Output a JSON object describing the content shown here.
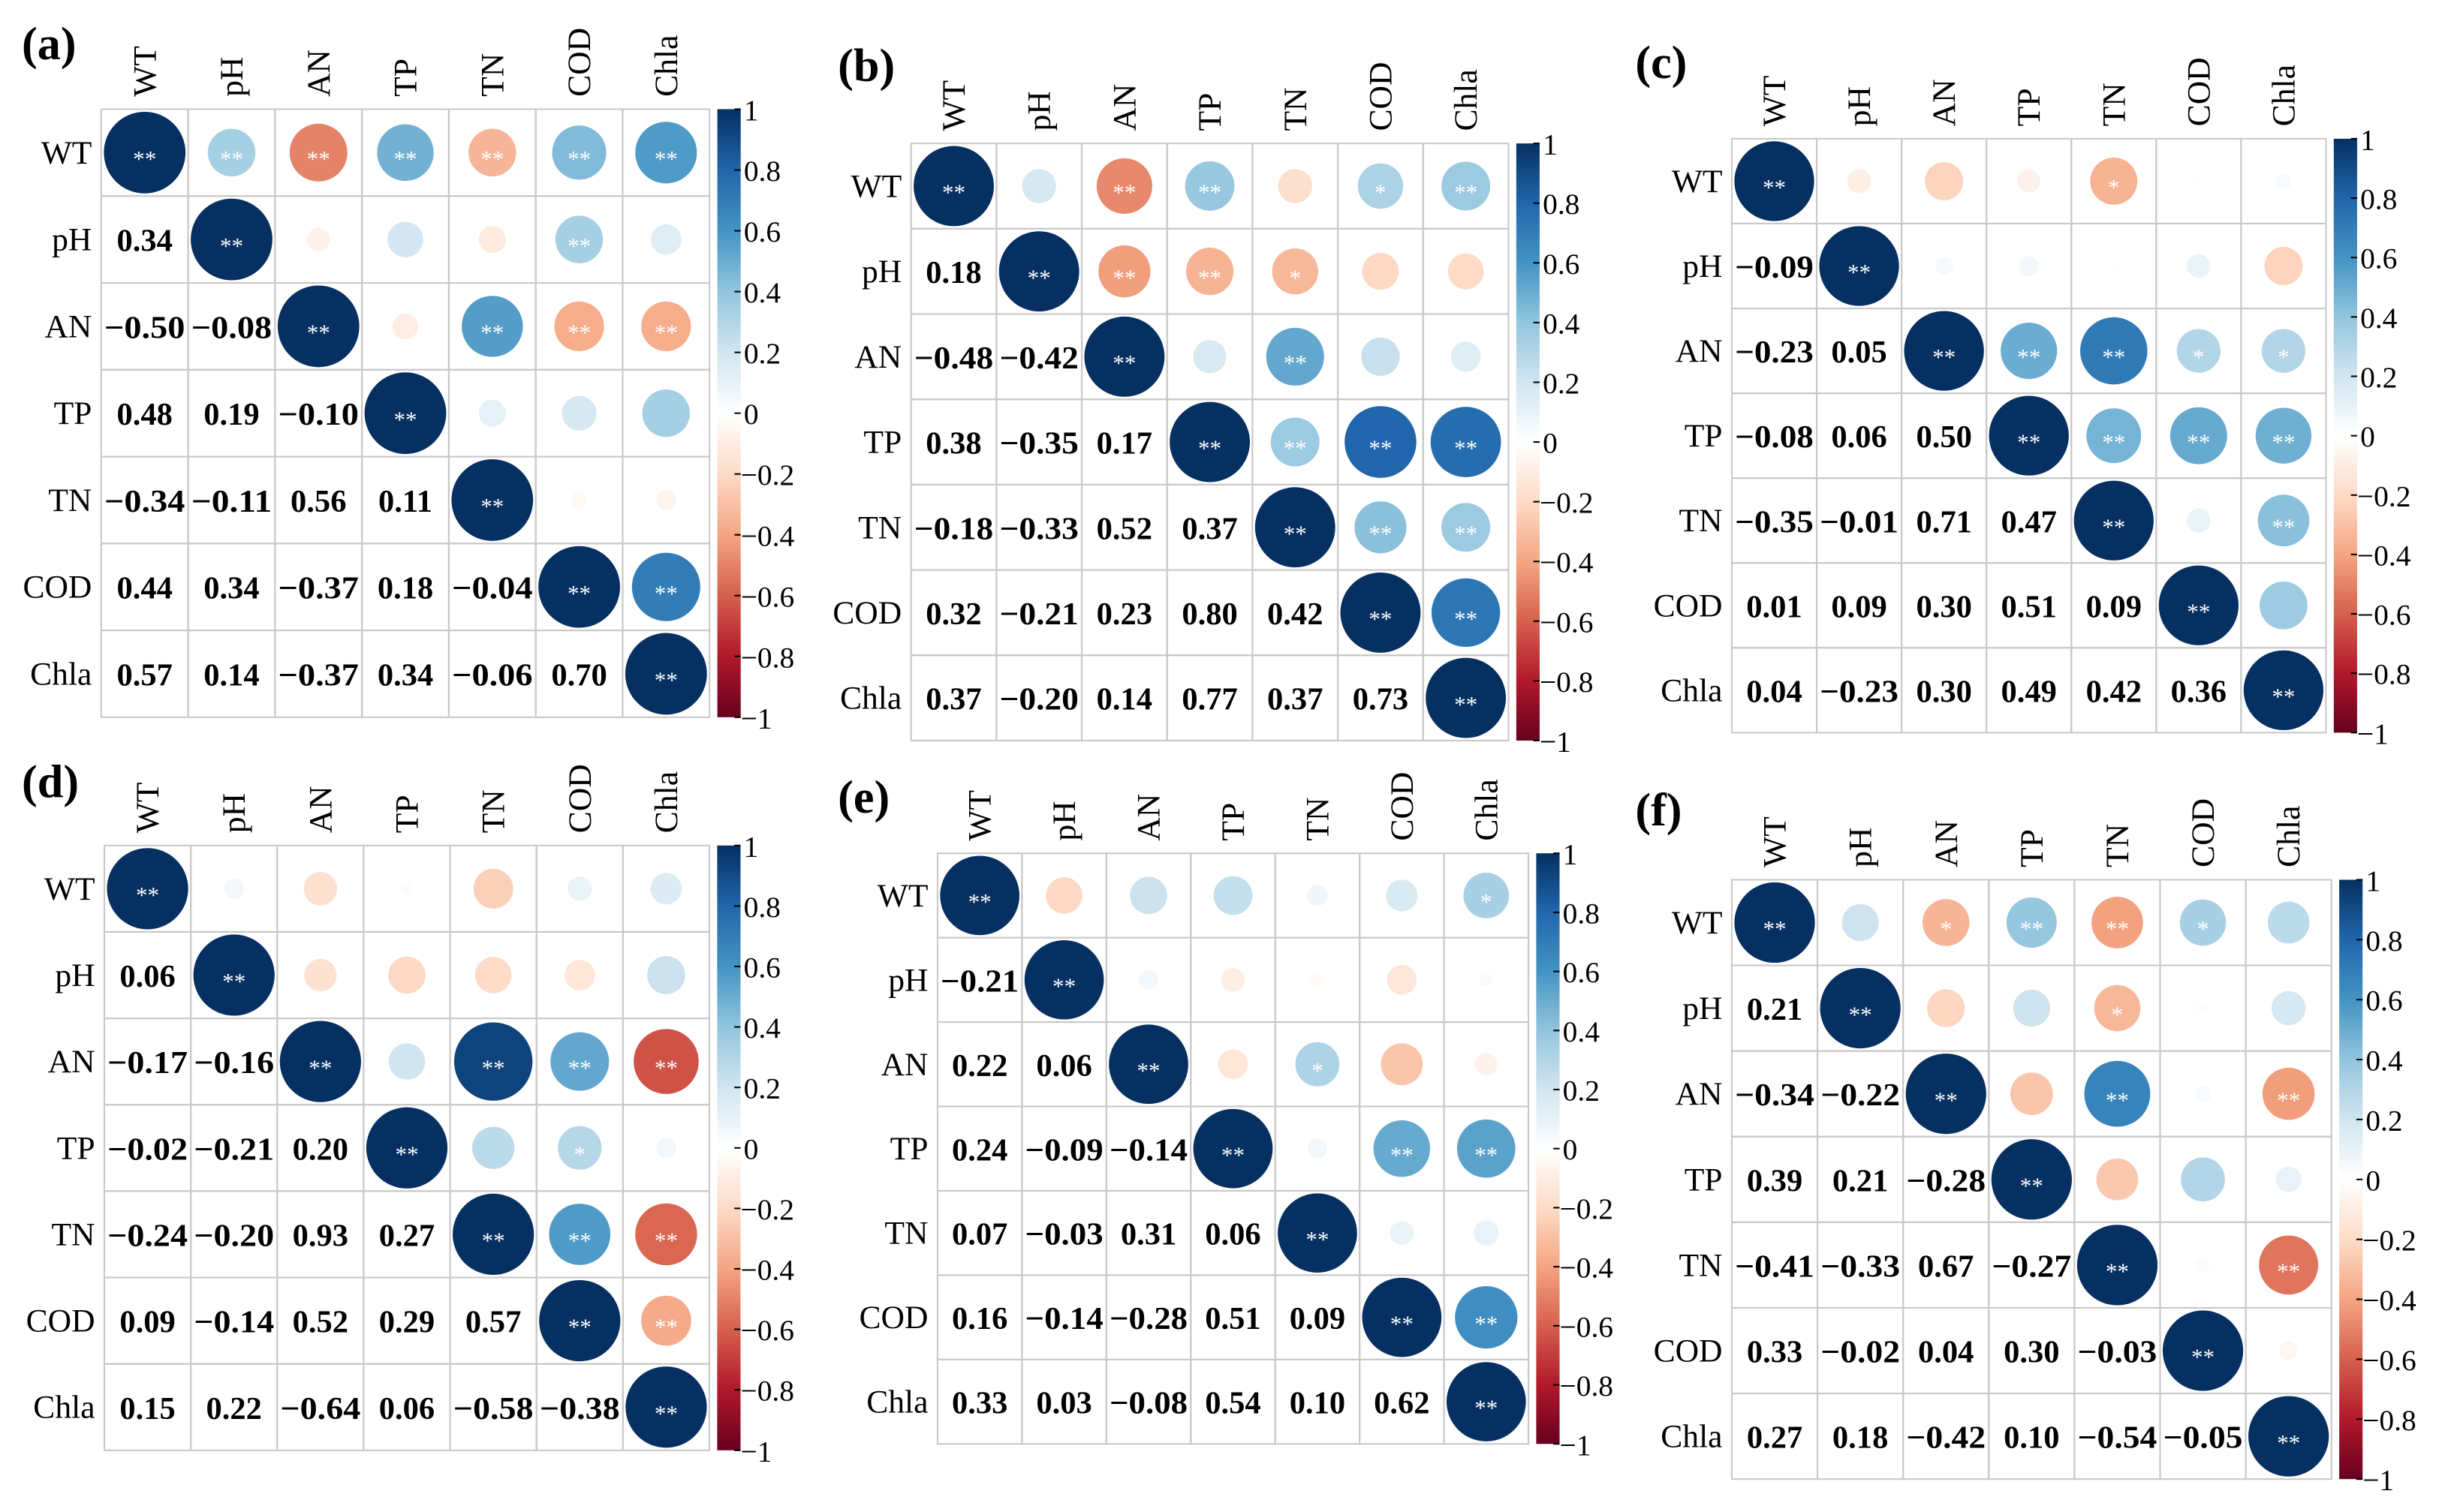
{
  "chart_data": [
    {
      "type": "heatmap",
      "panel_label": "(a)",
      "variables": [
        "WT",
        "pH",
        "AN",
        "TP",
        "TN",
        "COD",
        "Chla"
      ],
      "lower": [
        [],
        [
          0.34
        ],
        [
          -0.5,
          -0.08
        ],
        [
          0.48,
          0.19,
          -0.1
        ],
        [
          -0.34,
          -0.11,
          0.56,
          0.11
        ],
        [
          0.44,
          0.34,
          -0.37,
          0.18,
          -0.04
        ],
        [
          0.57,
          0.14,
          -0.37,
          0.34,
          -0.06,
          0.7
        ]
      ],
      "lower_text": [
        [],
        [
          "0.34"
        ],
        [
          "−0.50",
          "−0.08"
        ],
        [
          "0.48",
          "0.19",
          "−0.10"
        ],
        [
          "−0.34",
          "−0.11",
          "0.56",
          "0.11"
        ],
        [
          "0.44",
          "0.34",
          "−0.37",
          "0.18",
          "−0.04"
        ],
        [
          "0.57",
          "0.14",
          "−0.37",
          "0.34",
          "−0.06",
          "0.70"
        ]
      ],
      "significance": [
        [
          "**",
          "**",
          "**",
          "**",
          "**",
          "**",
          "**"
        ],
        [
          "**",
          "",
          "",
          "",
          "**",
          ""
        ],
        [
          "**",
          "",
          "**",
          "**",
          "**"
        ],
        [
          "**",
          "",
          "",
          ""
        ],
        [
          "**",
          "",
          ""
        ],
        [
          "**",
          "**"
        ],
        [
          "**"
        ]
      ]
    },
    {
      "type": "heatmap",
      "panel_label": "(b)",
      "variables": [
        "WT",
        "pH",
        "AN",
        "TP",
        "TN",
        "COD",
        "Chla"
      ],
      "lower": [
        [],
        [
          0.18
        ],
        [
          -0.48,
          -0.42
        ],
        [
          0.38,
          -0.35,
          0.17
        ],
        [
          -0.18,
          -0.33,
          0.52,
          0.37
        ],
        [
          0.32,
          -0.21,
          0.23,
          0.8,
          0.42
        ],
        [
          0.37,
          -0.2,
          0.14,
          0.77,
          0.37,
          0.73
        ]
      ],
      "lower_text": [
        [],
        [
          "0.18"
        ],
        [
          "−0.48",
          "−0.42"
        ],
        [
          "0.38",
          "−0.35",
          "0.17"
        ],
        [
          "−0.18",
          "−0.33",
          "0.52",
          "0.37"
        ],
        [
          "0.32",
          "−0.21",
          "0.23",
          "0.80",
          "0.42"
        ],
        [
          "0.37",
          "−0.20",
          "0.14",
          "0.77",
          "0.37",
          "0.73"
        ]
      ],
      "significance": [
        [
          "**",
          "",
          "**",
          "**",
          "",
          "*",
          "**"
        ],
        [
          "**",
          "**",
          "**",
          "*",
          "",
          ""
        ],
        [
          "**",
          "",
          "**",
          "",
          ""
        ],
        [
          "**",
          "**",
          "**",
          "**"
        ],
        [
          "**",
          "**",
          "**"
        ],
        [
          "**",
          "**"
        ],
        [
          "**"
        ]
      ]
    },
    {
      "type": "heatmap",
      "panel_label": "(c)",
      "variables": [
        "WT",
        "pH",
        "AN",
        "TP",
        "TN",
        "COD",
        "Chla"
      ],
      "lower": [
        [],
        [
          -0.09
        ],
        [
          -0.23,
          0.05
        ],
        [
          -0.08,
          0.06,
          0.5
        ],
        [
          -0.35,
          -0.01,
          0.71,
          0.47
        ],
        [
          0.01,
          0.09,
          0.3,
          0.51,
          0.09
        ],
        [
          0.04,
          -0.23,
          0.3,
          0.49,
          0.42,
          0.36
        ]
      ],
      "lower_text": [
        [],
        [
          "−0.09"
        ],
        [
          "−0.23",
          "0.05"
        ],
        [
          "−0.08",
          "0.06",
          "0.50"
        ],
        [
          "−0.35",
          "−0.01",
          "0.71",
          "0.47"
        ],
        [
          "0.01",
          "0.09",
          "0.30",
          "0.51",
          "0.09"
        ],
        [
          "0.04",
          "−0.23",
          "0.30",
          "0.49",
          "0.42",
          "0.36"
        ]
      ],
      "significance": [
        [
          "**",
          "",
          "",
          "",
          "*",
          "",
          ""
        ],
        [
          "**",
          "",
          "",
          "",
          "",
          ""
        ],
        [
          "**",
          "**",
          "**",
          "*",
          "*"
        ],
        [
          "**",
          "**",
          "**",
          "**"
        ],
        [
          "**",
          "",
          "**"
        ],
        [
          "**",
          ""
        ],
        [
          "**"
        ]
      ]
    },
    {
      "type": "heatmap",
      "panel_label": "(d)",
      "variables": [
        "WT",
        "pH",
        "AN",
        "TP",
        "TN",
        "COD",
        "Chla"
      ],
      "lower": [
        [],
        [
          0.06
        ],
        [
          -0.17,
          -0.16
        ],
        [
          -0.02,
          -0.21,
          0.2
        ],
        [
          -0.24,
          -0.2,
          0.93,
          0.27
        ],
        [
          0.09,
          -0.14,
          0.52,
          0.29,
          0.57
        ],
        [
          0.15,
          0.22,
          -0.64,
          0.06,
          -0.58,
          -0.38
        ]
      ],
      "lower_text": [
        [],
        [
          "0.06"
        ],
        [
          "−0.17",
          "−0.16"
        ],
        [
          "−0.02",
          "−0.21",
          "0.20"
        ],
        [
          "−0.24",
          "−0.20",
          "0.93",
          "0.27"
        ],
        [
          "0.09",
          "−0.14",
          "0.52",
          "0.29",
          "0.57"
        ],
        [
          "0.15",
          "0.22",
          "−0.64",
          "0.06",
          "−0.58",
          "−0.38"
        ]
      ],
      "significance": [
        [
          "**",
          "",
          "",
          "",
          "",
          "",
          ""
        ],
        [
          "**",
          "",
          "",
          "",
          "",
          ""
        ],
        [
          "**",
          "",
          "**",
          "**",
          "**"
        ],
        [
          "**",
          "",
          "*",
          ""
        ],
        [
          "**",
          "**",
          "**"
        ],
        [
          "**",
          "**"
        ],
        [
          "**"
        ]
      ]
    },
    {
      "type": "heatmap",
      "panel_label": "(e)",
      "variables": [
        "WT",
        "pH",
        "AN",
        "TP",
        "TN",
        "COD",
        "Chla"
      ],
      "lower": [
        [],
        [
          -0.21
        ],
        [
          0.22,
          0.06
        ],
        [
          0.24,
          -0.09,
          -0.14
        ],
        [
          0.07,
          -0.03,
          0.31,
          0.06
        ],
        [
          0.16,
          -0.14,
          -0.28,
          0.51,
          0.09
        ],
        [
          0.33,
          0.03,
          -0.08,
          0.54,
          0.1,
          0.62
        ]
      ],
      "lower_text": [
        [],
        [
          "−0.21"
        ],
        [
          "0.22",
          "0.06"
        ],
        [
          "0.24",
          "−0.09",
          "−0.14"
        ],
        [
          "0.07",
          "−0.03",
          "0.31",
          "0.06"
        ],
        [
          "0.16",
          "−0.14",
          "−0.28",
          "0.51",
          "0.09"
        ],
        [
          "0.33",
          "0.03",
          "−0.08",
          "0.54",
          "0.10",
          "0.62"
        ]
      ],
      "significance": [
        [
          "**",
          "",
          "",
          "",
          "",
          "",
          "*"
        ],
        [
          "**",
          "",
          "",
          "",
          "",
          ""
        ],
        [
          "**",
          "",
          "*",
          "",
          ""
        ],
        [
          "**",
          "",
          "**",
          "**"
        ],
        [
          "**",
          "",
          ""
        ],
        [
          "**",
          "**"
        ],
        [
          "**"
        ]
      ]
    },
    {
      "type": "heatmap",
      "panel_label": "(f)",
      "variables": [
        "WT",
        "pH",
        "AN",
        "TP",
        "TN",
        "COD",
        "Chla"
      ],
      "lower": [
        [],
        [
          0.21
        ],
        [
          -0.34,
          -0.22
        ],
        [
          0.39,
          0.21,
          -0.28
        ],
        [
          -0.41,
          -0.33,
          0.67,
          -0.27
        ],
        [
          0.33,
          -0.02,
          0.04,
          0.3,
          -0.03
        ],
        [
          0.27,
          0.18,
          -0.42,
          0.1,
          -0.54,
          -0.05
        ]
      ],
      "lower_text": [
        [],
        [
          "0.21"
        ],
        [
          "−0.34",
          "−0.22"
        ],
        [
          "0.39",
          "0.21",
          "−0.28"
        ],
        [
          "−0.41",
          "−0.33",
          "0.67",
          "−0.27"
        ],
        [
          "0.33",
          "−0.02",
          "0.04",
          "0.30",
          "−0.03"
        ],
        [
          "0.27",
          "0.18",
          "−0.42",
          "0.10",
          "−0.54",
          "−0.05"
        ]
      ],
      "significance": [
        [
          "**",
          "",
          "*",
          "**",
          "**",
          "*",
          ""
        ],
        [
          "**",
          "",
          "",
          "*",
          "",
          ""
        ],
        [
          "**",
          "",
          "**",
          "",
          "**"
        ],
        [
          "**",
          "",
          "",
          ""
        ],
        [
          "**",
          "",
          "**"
        ],
        [
          "**",
          ""
        ],
        [
          "**"
        ]
      ]
    }
  ],
  "colorbar": {
    "range": [
      -1,
      1
    ],
    "ticks": [
      1,
      0.8,
      0.6,
      0.4,
      0.2,
      0,
      -0.2,
      -0.4,
      -0.6,
      -0.8,
      -1
    ],
    "tick_labels": [
      "1",
      "0.8",
      "0.6",
      "0.4",
      "0.2",
      "0",
      "−0.2",
      "−0.4",
      "−0.6",
      "−0.8",
      "−1"
    ],
    "colors_low_to_high": [
      "#67001F",
      "#B2182B",
      "#D6604D",
      "#F4A582",
      "#FDDBC7",
      "#FFFFFF",
      "#D1E5F0",
      "#92C5DE",
      "#4393C3",
      "#2166AC",
      "#053061"
    ]
  }
}
